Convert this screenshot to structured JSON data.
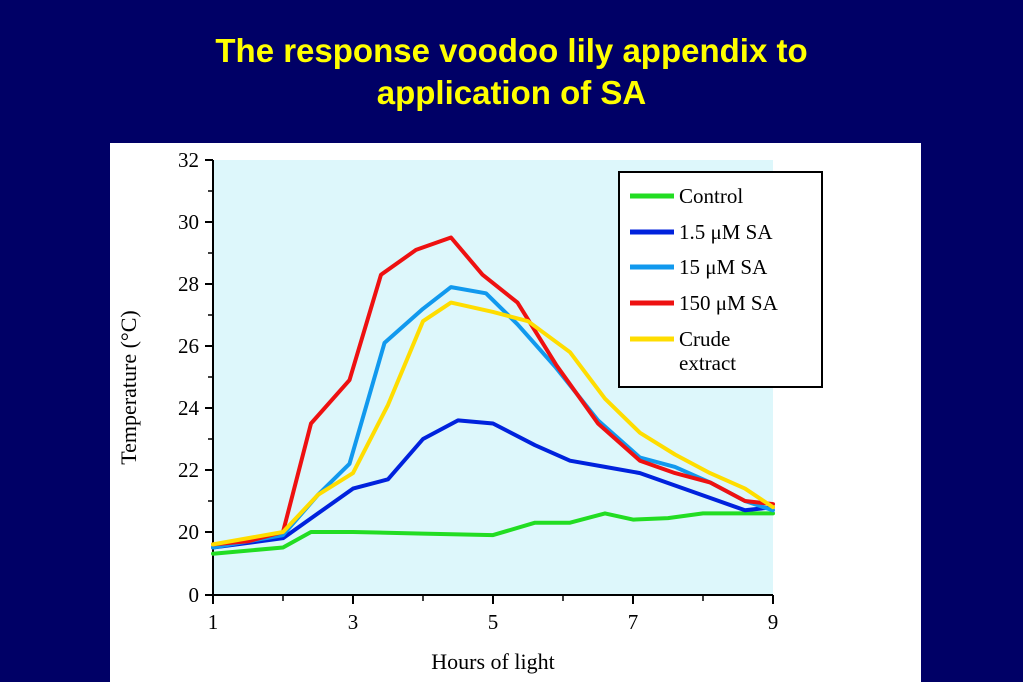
{
  "slide": {
    "title_line1": "The response voodoo lily appendix to",
    "title_line2": "application of SA"
  },
  "colors": {
    "background": "#000066",
    "title": "#ffff00",
    "plot_area": "#ddf7fb"
  },
  "chart_data": {
    "type": "line",
    "title": "",
    "xlabel": "Hours of light",
    "ylabel": "Temperature (°C)",
    "xlim": [
      1,
      9
    ],
    "ylim": [
      0,
      32
    ],
    "y_axis_break": [
      0,
      20
    ],
    "xticks": [
      1,
      3,
      5,
      7,
      9
    ],
    "yticks": [
      0,
      20,
      22,
      24,
      26,
      28,
      30,
      32
    ],
    "grid": false,
    "legend_position": "top-right",
    "series": [
      {
        "name": "Control",
        "color": "#22dd22",
        "x": [
          1,
          2,
          2.4,
          3,
          4,
          5,
          5.6,
          6.1,
          6.6,
          7,
          7.5,
          8,
          8.5,
          9
        ],
        "y": [
          19.3,
          19.5,
          20,
          20,
          19.95,
          19.9,
          20.3,
          20.3,
          20.6,
          20.4,
          20.45,
          20.6,
          20.6,
          20.6
        ]
      },
      {
        "name": "1.5 μM SA",
        "color": "#0022dd",
        "x": [
          1,
          2,
          2.5,
          3,
          3.5,
          4,
          4.5,
          5,
          5.6,
          6.1,
          6.6,
          7.1,
          7.6,
          8.1,
          8.6,
          9
        ],
        "y": [
          19.5,
          19.8,
          20.6,
          21.4,
          21.7,
          23.0,
          23.6,
          23.5,
          22.8,
          22.3,
          22.1,
          21.9,
          21.5,
          21.1,
          20.7,
          20.8
        ]
      },
      {
        "name": "15 μM SA",
        "color": "#1199ee",
        "x": [
          1,
          2,
          2.5,
          2.95,
          3.45,
          4,
          4.4,
          4.9,
          5.35,
          5.9,
          6.5,
          7.1,
          7.6,
          8.1,
          8.6,
          9
        ],
        "y": [
          19.5,
          19.9,
          21.2,
          22.2,
          26.1,
          27.2,
          27.9,
          27.7,
          26.7,
          25.3,
          23.6,
          22.4,
          22.1,
          21.6,
          21.0,
          20.7
        ]
      },
      {
        "name": "150 μM SA",
        "color": "#ee1111",
        "x": [
          1,
          1.5,
          2,
          2.4,
          2.95,
          3.4,
          3.9,
          4.4,
          4.85,
          5.35,
          5.9,
          6.5,
          7.1,
          7.6,
          8.1,
          8.6,
          9
        ],
        "y": [
          19.6,
          19.7,
          20.0,
          23.5,
          24.9,
          28.3,
          29.1,
          29.5,
          28.3,
          27.4,
          25.4,
          23.5,
          22.3,
          21.9,
          21.6,
          21.0,
          20.9
        ]
      },
      {
        "name": "Crude extract",
        "color": "#ffdd00",
        "x": [
          1,
          2,
          2.5,
          3,
          3.5,
          4,
          4.4,
          5,
          5.5,
          6.1,
          6.6,
          7.1,
          7.6,
          8.1,
          8.6,
          9
        ],
        "y": [
          19.6,
          20.0,
          21.2,
          21.9,
          24.1,
          26.8,
          27.4,
          27.1,
          26.8,
          25.8,
          24.3,
          23.2,
          22.5,
          21.9,
          21.4,
          20.8
        ]
      }
    ],
    "legend_labels": [
      [
        "Control"
      ],
      [
        "1.5 μM SA"
      ],
      [
        "15 μM SA"
      ],
      [
        "150 μM SA"
      ],
      [
        "Crude",
        "extract"
      ]
    ]
  }
}
